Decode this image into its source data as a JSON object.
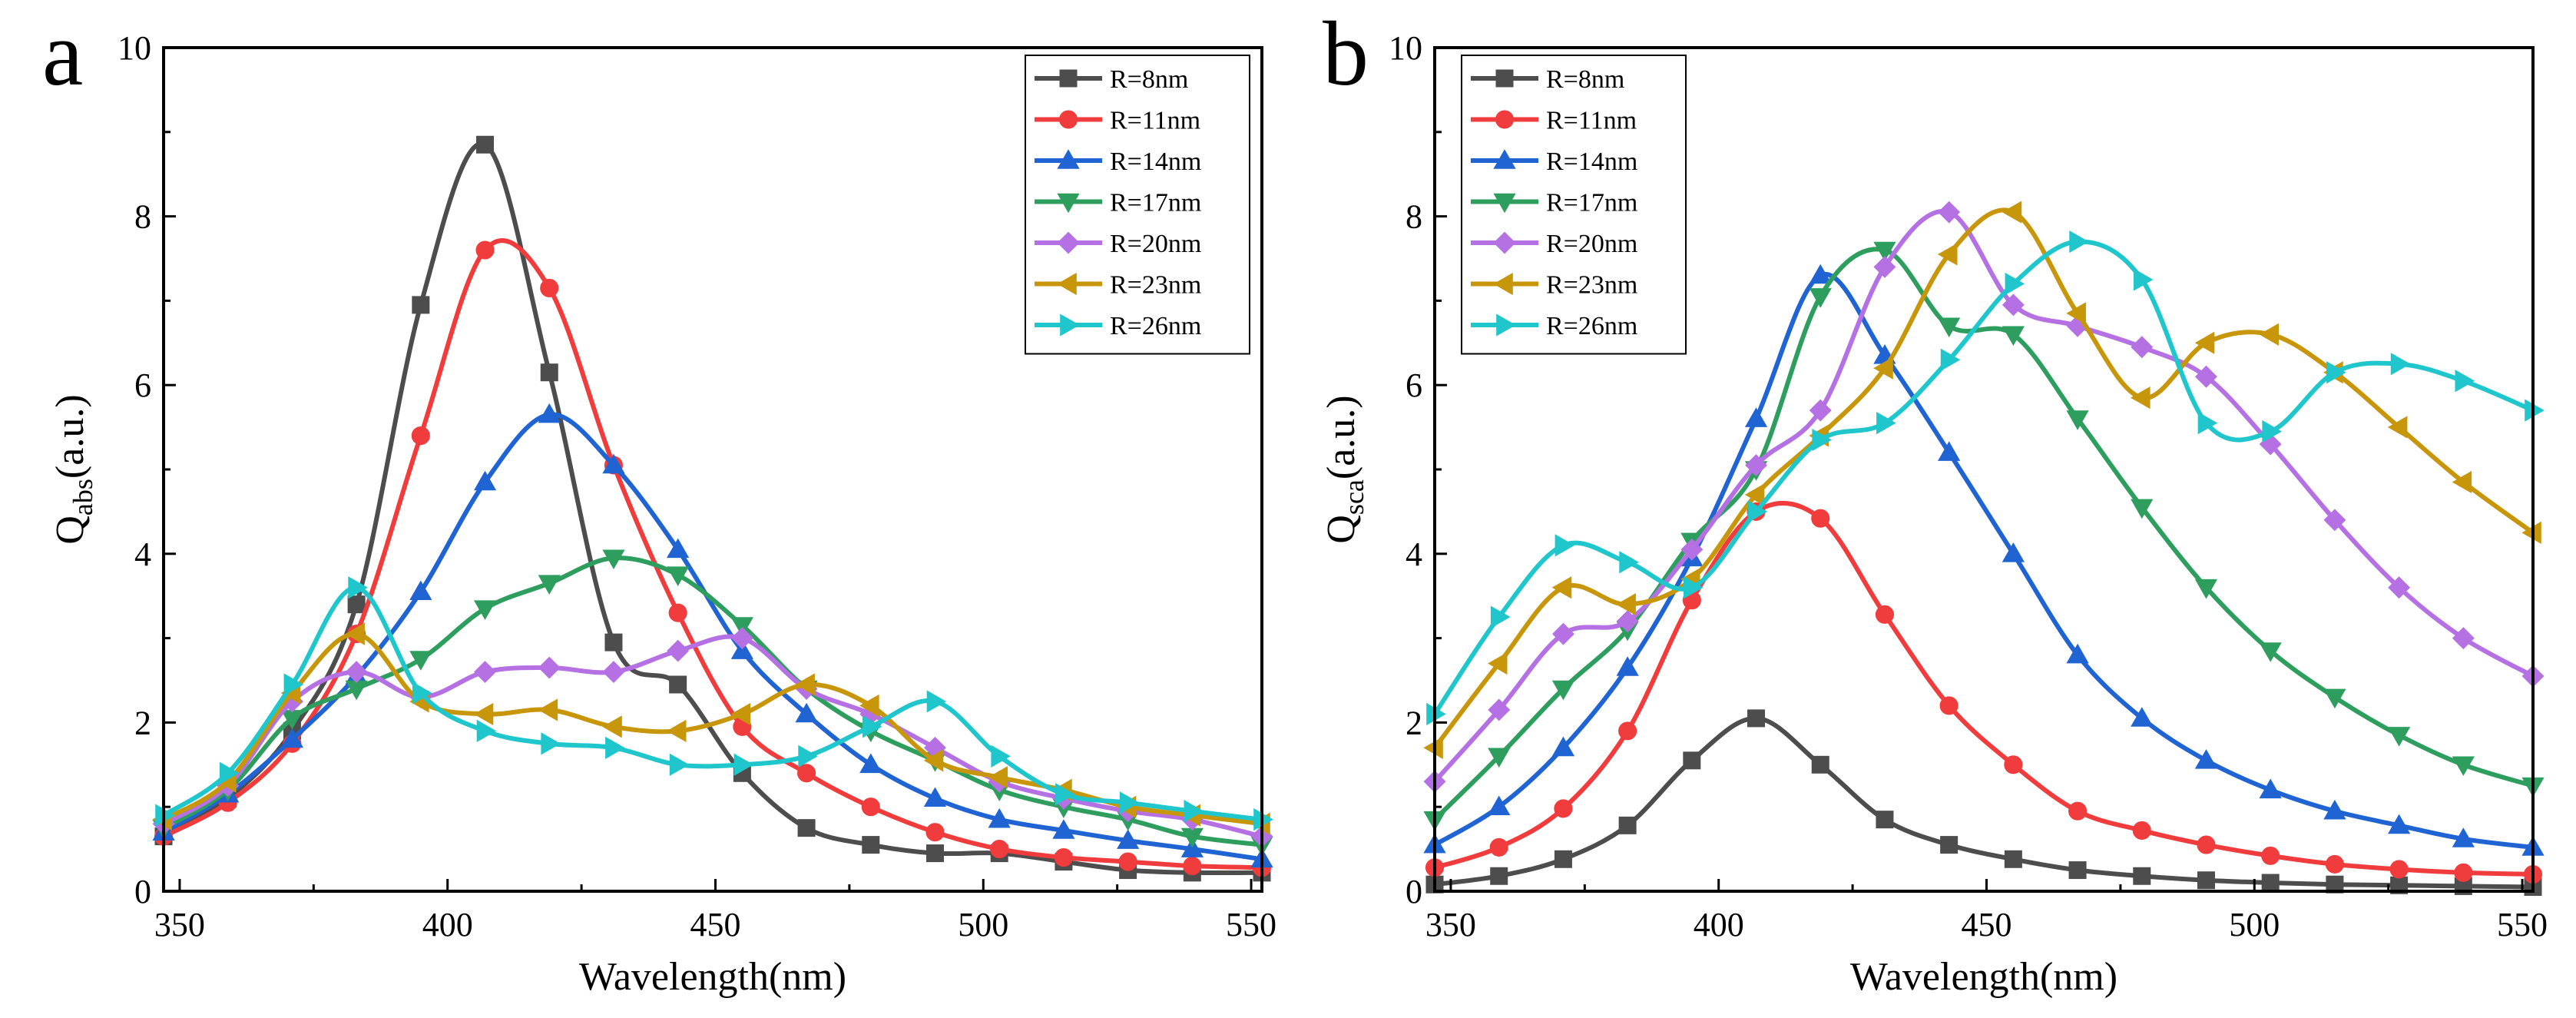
{
  "figure": {
    "line_colors": {
      "R=8nm": "#4d4d4d",
      "R=11nm": "#f03c3c",
      "R=14nm": "#1f64d2",
      "R=17nm": "#2e9e5f",
      "R=20nm": "#b571e3",
      "R=23nm": "#c8960a",
      "R=26nm": "#1fc6cc"
    },
    "marker_shapes": {
      "R=8nm": "square",
      "R=11nm": "circle",
      "R=14nm": "triangle-up",
      "R=17nm": "triangle-down",
      "R=20nm": "diamond",
      "R=23nm": "triangle-left",
      "R=26nm": "triangle-right"
    }
  },
  "chart_data": [
    {
      "panel": "a",
      "type": "line",
      "title": "",
      "xlabel": "Wavelength(nm)",
      "ylabel_main": "Q",
      "ylabel_sub": "abs",
      "ylabel_tail": "(a.u.)",
      "xlim": [
        347,
        552
      ],
      "ylim": [
        0,
        10
      ],
      "xticks": [
        350,
        400,
        450,
        500,
        550
      ],
      "yticks": [
        0,
        2,
        4,
        6,
        8,
        10
      ],
      "grid": false,
      "legend_position": "top-right",
      "x": [
        347,
        359,
        371,
        383,
        395,
        407,
        419,
        431,
        443,
        455,
        467,
        479,
        491,
        503,
        515,
        527,
        539,
        552
      ],
      "series": [
        {
          "name": "R=8nm",
          "values": [
            0.65,
            1.1,
            1.9,
            3.4,
            6.95,
            8.85,
            6.15,
            2.95,
            2.45,
            1.4,
            0.75,
            0.55,
            0.45,
            0.45,
            0.35,
            0.25,
            0.22,
            0.22
          ]
        },
        {
          "name": "R=11nm",
          "values": [
            0.65,
            1.05,
            1.75,
            3.05,
            5.4,
            7.6,
            7.15,
            5.05,
            3.3,
            1.95,
            1.4,
            1.0,
            0.7,
            0.5,
            0.4,
            0.35,
            0.3,
            0.28
          ]
        },
        {
          "name": "R=14nm",
          "values": [
            0.7,
            1.15,
            1.8,
            2.55,
            3.55,
            4.85,
            5.65,
            5.05,
            4.05,
            2.85,
            2.1,
            1.5,
            1.1,
            0.85,
            0.72,
            0.6,
            0.5,
            0.38
          ]
        },
        {
          "name": "R=17nm",
          "values": [
            0.75,
            1.2,
            2.05,
            2.4,
            2.75,
            3.35,
            3.65,
            3.95,
            3.75,
            3.15,
            2.4,
            1.9,
            1.55,
            1.2,
            1.0,
            0.85,
            0.65,
            0.55
          ]
        },
        {
          "name": "R=20nm",
          "values": [
            0.8,
            1.25,
            2.25,
            2.6,
            2.3,
            2.6,
            2.65,
            2.6,
            2.85,
            3.0,
            2.4,
            2.1,
            1.7,
            1.3,
            1.1,
            0.95,
            0.85,
            0.65
          ]
        },
        {
          "name": "R=23nm",
          "values": [
            0.85,
            1.3,
            2.35,
            3.05,
            2.25,
            2.1,
            2.15,
            1.95,
            1.9,
            2.1,
            2.45,
            2.2,
            1.55,
            1.35,
            1.2,
            1.0,
            0.9,
            0.8
          ]
        },
        {
          "name": "R=26nm",
          "values": [
            0.9,
            1.4,
            2.45,
            3.6,
            2.35,
            1.9,
            1.75,
            1.7,
            1.5,
            1.5,
            1.6,
            1.95,
            2.25,
            1.6,
            1.15,
            1.05,
            0.95,
            0.85
          ]
        }
      ]
    },
    {
      "panel": "b",
      "type": "line",
      "title": "",
      "xlabel": "Wavelength(nm)",
      "ylabel_main": "Q",
      "ylabel_sub": "sca",
      "ylabel_tail": "(a.u.)",
      "xlim": [
        347,
        552
      ],
      "ylim": [
        0,
        10
      ],
      "xticks": [
        350,
        400,
        450,
        500,
        550
      ],
      "yticks": [
        0,
        2,
        4,
        6,
        8,
        10
      ],
      "grid": false,
      "legend_position": "top-left",
      "x": [
        347,
        359,
        371,
        383,
        395,
        407,
        419,
        431,
        443,
        455,
        467,
        479,
        491,
        503,
        515,
        527,
        539,
        552
      ],
      "series": [
        {
          "name": "R=8nm",
          "values": [
            0.08,
            0.18,
            0.38,
            0.78,
            1.55,
            2.05,
            1.5,
            0.85,
            0.55,
            0.38,
            0.25,
            0.18,
            0.13,
            0.1,
            0.08,
            0.07,
            0.06,
            0.05
          ]
        },
        {
          "name": "R=11nm",
          "values": [
            0.28,
            0.52,
            0.98,
            1.9,
            3.45,
            4.5,
            4.42,
            3.28,
            2.2,
            1.5,
            0.95,
            0.72,
            0.55,
            0.42,
            0.32,
            0.26,
            0.22,
            0.2
          ]
        },
        {
          "name": "R=14nm",
          "values": [
            0.55,
            1.0,
            1.7,
            2.65,
            3.95,
            5.6,
            7.3,
            6.35,
            5.2,
            4.0,
            2.8,
            2.05,
            1.55,
            1.2,
            0.95,
            0.78,
            0.62,
            0.52
          ]
        },
        {
          "name": "R=17nm",
          "values": [
            0.85,
            1.6,
            2.4,
            3.1,
            4.15,
            5.0,
            7.05,
            7.6,
            6.7,
            6.6,
            5.6,
            4.55,
            3.6,
            2.85,
            2.3,
            1.85,
            1.5,
            1.25
          ]
        },
        {
          "name": "R=20nm",
          "values": [
            1.3,
            2.15,
            3.05,
            3.2,
            4.05,
            5.05,
            5.7,
            7.4,
            8.05,
            6.95,
            6.7,
            6.45,
            6.1,
            5.3,
            4.4,
            3.6,
            3.0,
            2.55
          ]
        },
        {
          "name": "R=23nm",
          "values": [
            1.7,
            2.7,
            3.6,
            3.4,
            3.7,
            4.7,
            5.4,
            6.2,
            7.55,
            8.05,
            6.85,
            5.85,
            6.5,
            6.6,
            6.15,
            5.5,
            4.85,
            4.25
          ]
        },
        {
          "name": "R=26nm",
          "values": [
            2.1,
            3.25,
            4.1,
            3.9,
            3.6,
            4.5,
            5.35,
            5.55,
            6.3,
            7.2,
            7.7,
            7.25,
            5.55,
            5.45,
            6.15,
            6.25,
            6.05,
            5.7
          ]
        }
      ]
    }
  ]
}
